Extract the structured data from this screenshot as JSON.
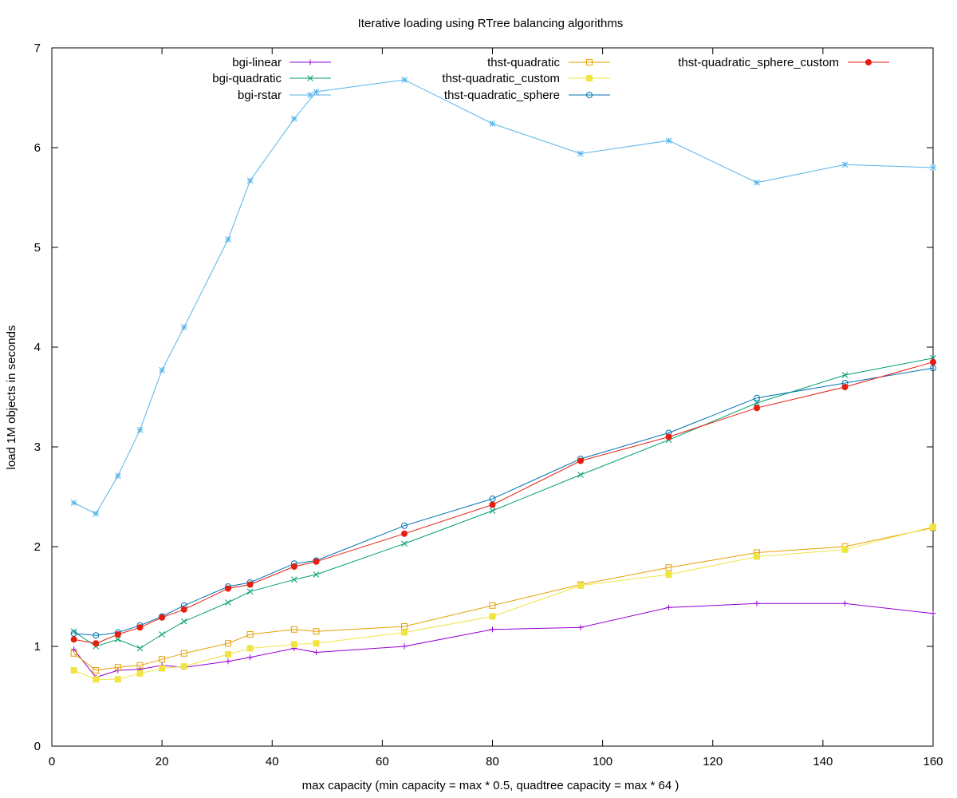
{
  "chart_data": {
    "type": "line",
    "title": "Iterative loading using RTree balancing algorithms",
    "xlabel": "max capacity (min capacity = max * 0.5, quadtree capacity = max * 64 )",
    "ylabel": "load 1M objects in seconds",
    "xlim": [
      0,
      160
    ],
    "ylim": [
      0,
      7
    ],
    "xticks": [
      0,
      20,
      40,
      60,
      80,
      100,
      120,
      140,
      160
    ],
    "yticks": [
      0,
      1,
      2,
      3,
      4,
      5,
      6,
      7
    ],
    "grid": false,
    "legend_position": "top",
    "x": [
      4,
      8,
      12,
      16,
      20,
      24,
      32,
      36,
      44,
      48,
      64,
      80,
      96,
      112,
      128,
      144,
      160
    ],
    "series": [
      {
        "name": "bgi-linear",
        "color": "#9400d3",
        "marker": "plus",
        "values": [
          0.97,
          0.69,
          0.76,
          0.77,
          0.81,
          0.79,
          0.85,
          0.89,
          0.98,
          0.94,
          1.0,
          1.17,
          1.19,
          1.39,
          1.43,
          1.43,
          1.33
        ]
      },
      {
        "name": "bgi-quadratic",
        "color": "#009e73",
        "marker": "cross",
        "values": [
          1.15,
          1.0,
          1.07,
          0.98,
          1.12,
          1.25,
          1.44,
          1.55,
          1.67,
          1.72,
          2.03,
          2.36,
          2.72,
          3.07,
          3.44,
          3.72,
          3.89
        ]
      },
      {
        "name": "bgi-rstar",
        "color": "#56b4e9",
        "marker": "star",
        "values": [
          2.44,
          2.33,
          2.71,
          3.17,
          3.77,
          4.2,
          5.08,
          5.67,
          6.29,
          6.56,
          6.68,
          6.24,
          5.94,
          6.07,
          5.65,
          5.83,
          5.8
        ]
      },
      {
        "name": "thst-quadratic",
        "color": "#e69f00",
        "marker": "square-open",
        "values": [
          0.93,
          0.76,
          0.79,
          0.81,
          0.87,
          0.93,
          1.03,
          1.12,
          1.17,
          1.15,
          1.2,
          1.41,
          1.62,
          1.79,
          1.94,
          2.0,
          2.19
        ]
      },
      {
        "name": "thst-quadratic_custom",
        "color": "#f0e442",
        "marker": "square-filled",
        "values": [
          0.76,
          0.67,
          0.67,
          0.73,
          0.78,
          0.8,
          0.92,
          0.98,
          1.02,
          1.03,
          1.14,
          1.3,
          1.61,
          1.72,
          1.9,
          1.97,
          2.2
        ]
      },
      {
        "name": "thst-quadratic_sphere",
        "color": "#0072b2",
        "marker": "circle-open",
        "values": [
          1.13,
          1.11,
          1.14,
          1.21,
          1.3,
          1.41,
          1.6,
          1.64,
          1.83,
          1.86,
          2.21,
          2.48,
          2.88,
          3.14,
          3.49,
          3.64,
          3.79
        ]
      },
      {
        "name": "thst-quadratic_sphere_custom",
        "color": "#e51e10",
        "marker": "circle-filled",
        "values": [
          1.07,
          1.03,
          1.12,
          1.19,
          1.29,
          1.37,
          1.58,
          1.62,
          1.8,
          1.85,
          2.13,
          2.42,
          2.86,
          3.1,
          3.39,
          3.6,
          3.85
        ]
      }
    ]
  }
}
